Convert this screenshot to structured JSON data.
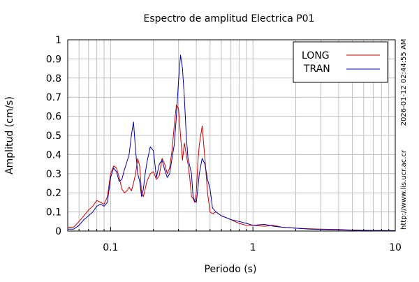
{
  "chart_data": {
    "type": "line",
    "title": "Espectro de amplitud Electrica P01",
    "xlabel": "Periodo (s)",
    "ylabel": "Amplitud (cm/s)",
    "x_scale": "log",
    "xlim": [
      0.05,
      10
    ],
    "ylim": [
      0,
      1
    ],
    "x_ticks": [
      0.1,
      1,
      10
    ],
    "x_tick_labels": [
      "0.1",
      "1",
      "10"
    ],
    "y_ticks": [
      0,
      0.1,
      0.2,
      0.3,
      0.4,
      0.5,
      0.6,
      0.7,
      0.8,
      0.9,
      1
    ],
    "y_tick_labels": [
      "0",
      "0.1",
      "0.2",
      "0.3",
      "0.4",
      "0.5",
      "0.6",
      "0.7",
      "0.8",
      "0.9",
      "1"
    ],
    "grid": true,
    "legend_position": "top-right",
    "series": [
      {
        "name": "LONG",
        "color": "#cc0000",
        "x": [
          0.05,
          0.055,
          0.06,
          0.065,
          0.07,
          0.075,
          0.08,
          0.085,
          0.09,
          0.095,
          0.1,
          0.105,
          0.11,
          0.115,
          0.12,
          0.125,
          0.13,
          0.135,
          0.14,
          0.145,
          0.15,
          0.155,
          0.16,
          0.165,
          0.17,
          0.175,
          0.18,
          0.19,
          0.2,
          0.21,
          0.22,
          0.23,
          0.24,
          0.25,
          0.26,
          0.27,
          0.28,
          0.29,
          0.3,
          0.31,
          0.32,
          0.33,
          0.34,
          0.35,
          0.36,
          0.37,
          0.38,
          0.39,
          0.4,
          0.41,
          0.42,
          0.44,
          0.46,
          0.48,
          0.5,
          0.52,
          0.55,
          0.6,
          0.65,
          0.7,
          0.8,
          0.9,
          1.0,
          1.2,
          1.4,
          1.6,
          2.0,
          2.5,
          3.0,
          4.0,
          5.0,
          7.0,
          10.0
        ],
        "values": [
          0.02,
          0.02,
          0.05,
          0.08,
          0.11,
          0.13,
          0.16,
          0.15,
          0.14,
          0.18,
          0.3,
          0.34,
          0.33,
          0.28,
          0.22,
          0.2,
          0.21,
          0.23,
          0.21,
          0.25,
          0.3,
          0.38,
          0.34,
          0.2,
          0.18,
          0.22,
          0.26,
          0.3,
          0.31,
          0.27,
          0.29,
          0.38,
          0.35,
          0.3,
          0.33,
          0.42,
          0.55,
          0.66,
          0.64,
          0.5,
          0.37,
          0.46,
          0.4,
          0.35,
          0.28,
          0.18,
          0.17,
          0.15,
          0.2,
          0.36,
          0.45,
          0.55,
          0.38,
          0.2,
          0.1,
          0.09,
          0.1,
          0.08,
          0.07,
          0.06,
          0.04,
          0.03,
          0.03,
          0.025,
          0.03,
          0.02,
          0.015,
          0.012,
          0.01,
          0.008,
          0.005,
          0.003,
          0.002
        ]
      },
      {
        "name": "TRAN",
        "color": "#0000aa",
        "x": [
          0.05,
          0.055,
          0.06,
          0.065,
          0.07,
          0.075,
          0.08,
          0.085,
          0.09,
          0.095,
          0.1,
          0.105,
          0.11,
          0.115,
          0.12,
          0.125,
          0.13,
          0.135,
          0.14,
          0.145,
          0.15,
          0.155,
          0.16,
          0.165,
          0.17,
          0.175,
          0.18,
          0.19,
          0.2,
          0.21,
          0.22,
          0.23,
          0.24,
          0.25,
          0.26,
          0.27,
          0.28,
          0.29,
          0.3,
          0.31,
          0.32,
          0.33,
          0.34,
          0.35,
          0.36,
          0.37,
          0.38,
          0.39,
          0.4,
          0.41,
          0.42,
          0.44,
          0.46,
          0.48,
          0.5,
          0.52,
          0.55,
          0.6,
          0.65,
          0.7,
          0.8,
          0.9,
          1.0,
          1.2,
          1.4,
          1.6,
          2.0,
          2.5,
          3.0,
          4.0,
          5.0,
          7.0,
          10.0
        ],
        "values": [
          0.01,
          0.01,
          0.03,
          0.06,
          0.08,
          0.1,
          0.13,
          0.14,
          0.13,
          0.15,
          0.28,
          0.33,
          0.31,
          0.26,
          0.27,
          0.32,
          0.36,
          0.4,
          0.5,
          0.57,
          0.42,
          0.3,
          0.26,
          0.18,
          0.22,
          0.3,
          0.36,
          0.44,
          0.42,
          0.28,
          0.35,
          0.37,
          0.32,
          0.28,
          0.3,
          0.38,
          0.45,
          0.6,
          0.78,
          0.92,
          0.85,
          0.7,
          0.5,
          0.38,
          0.34,
          0.3,
          0.18,
          0.16,
          0.15,
          0.22,
          0.3,
          0.38,
          0.35,
          0.27,
          0.22,
          0.12,
          0.1,
          0.08,
          0.07,
          0.06,
          0.05,
          0.04,
          0.03,
          0.035,
          0.025,
          0.02,
          0.015,
          0.01,
          0.008,
          0.006,
          0.004,
          0.003,
          0.002
        ]
      }
    ]
  },
  "side_text": {
    "timestamp": "2026-01-12 02:44:55 AM",
    "url": "http://www.lis.ucr.ac.cr"
  }
}
